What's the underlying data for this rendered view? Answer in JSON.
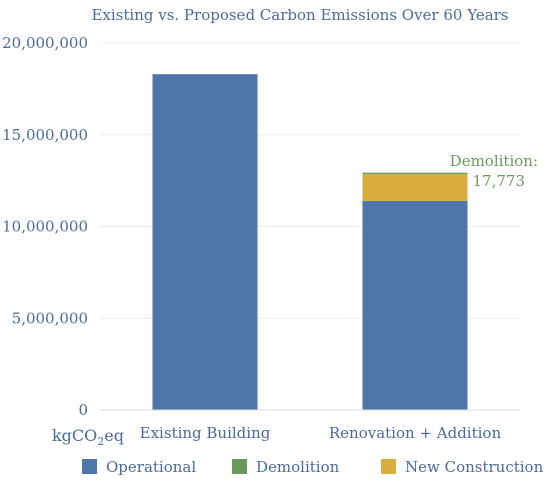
{
  "colors": {
    "operational": "#4e76a8",
    "demolition": "#6a9a5a",
    "new_construction": "#d9ae3e",
    "text": "#4a6b9a",
    "annotation": "#6a9a5a",
    "grid": "#ececec",
    "axis": "#d8d8d8"
  },
  "chart_data": {
    "type": "bar",
    "stacked": true,
    "title": "Existing vs. Proposed Carbon Emissions Over 60 Years",
    "ylabel": "kgCO2eq",
    "ylim": [
      0,
      20000000
    ],
    "yticks": [
      0,
      5000000,
      10000000,
      15000000,
      20000000
    ],
    "ytick_labels": [
      "0",
      "5,000,000",
      "10,000,000",
      "15,000,000",
      "20,000,000"
    ],
    "categories": [
      "Existing Building",
      "Renovation + Addition"
    ],
    "series": [
      {
        "name": "Operational",
        "values": [
          18300000,
          11400000
        ],
        "color_key": "operational"
      },
      {
        "name": "Demolition",
        "values": [
          0,
          17773
        ],
        "color_key": "demolition"
      },
      {
        "name": "New Construction",
        "values": [
          0,
          1450000
        ],
        "color_key": "new_construction"
      }
    ],
    "stack_order": [
      "Operational",
      "New Construction",
      "Demolition"
    ],
    "annotations": [
      {
        "text": "Demolition:",
        "category": "Renovation + Addition"
      },
      {
        "text": "17,773",
        "category": "Renovation + Addition"
      }
    ],
    "legend_placement": "bottom",
    "grid": true
  }
}
